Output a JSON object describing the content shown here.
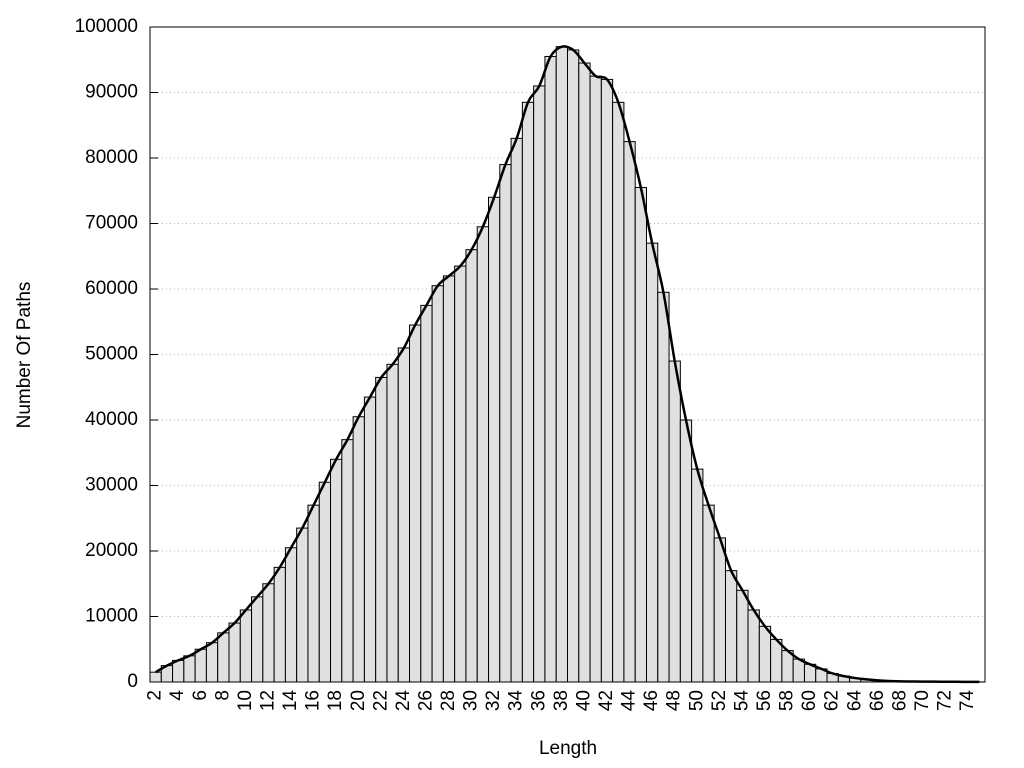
{
  "chart_data": {
    "type": "bar",
    "x_label": "Length",
    "y_label": "Number Of Paths",
    "categories": [
      2,
      null,
      4,
      null,
      6,
      null,
      8,
      null,
      10,
      null,
      12,
      null,
      14,
      null,
      16,
      null,
      18,
      null,
      20,
      null,
      22,
      null,
      24,
      null,
      26,
      null,
      28,
      null,
      30,
      null,
      32,
      null,
      34,
      null,
      36,
      null,
      38,
      null,
      40,
      null,
      42,
      null,
      44,
      null,
      46,
      null,
      48,
      null,
      50,
      null,
      52,
      null,
      54,
      null,
      56,
      null,
      58,
      null,
      60,
      null,
      62,
      null,
      64,
      null,
      66,
      null,
      68,
      null,
      70,
      null,
      72,
      null,
      74,
      null
    ],
    "values": [
      1500,
      2500,
      3300,
      4000,
      5000,
      6000,
      7500,
      9000,
      11000,
      13000,
      15000,
      17500,
      20500,
      23500,
      27000,
      30500,
      34000,
      37000,
      40500,
      43500,
      46500,
      48500,
      51000,
      54500,
      57500,
      60500,
      62000,
      63500,
      66000,
      69500,
      74000,
      79000,
      83000,
      88500,
      91000,
      95500,
      97000,
      96500,
      94500,
      92500,
      92000,
      88500,
      82500,
      75500,
      67000,
      59500,
      49000,
      40000,
      32500,
      27000,
      22000,
      17000,
      14000,
      11000,
      8500,
      6500,
      4800,
      3500,
      2700,
      2000,
      1300,
      900,
      600,
      400,
      250,
      150,
      100,
      80,
      60,
      50,
      40,
      30,
      20,
      10
    ],
    "color": "#e0e0e0",
    "line_color": "#000000",
    "smooth_line": true,
    "ylim": [
      0,
      100000
    ],
    "yticks": [
      0,
      10000,
      20000,
      30000,
      40000,
      50000,
      60000,
      70000,
      80000,
      90000,
      100000
    ],
    "grid": true
  }
}
